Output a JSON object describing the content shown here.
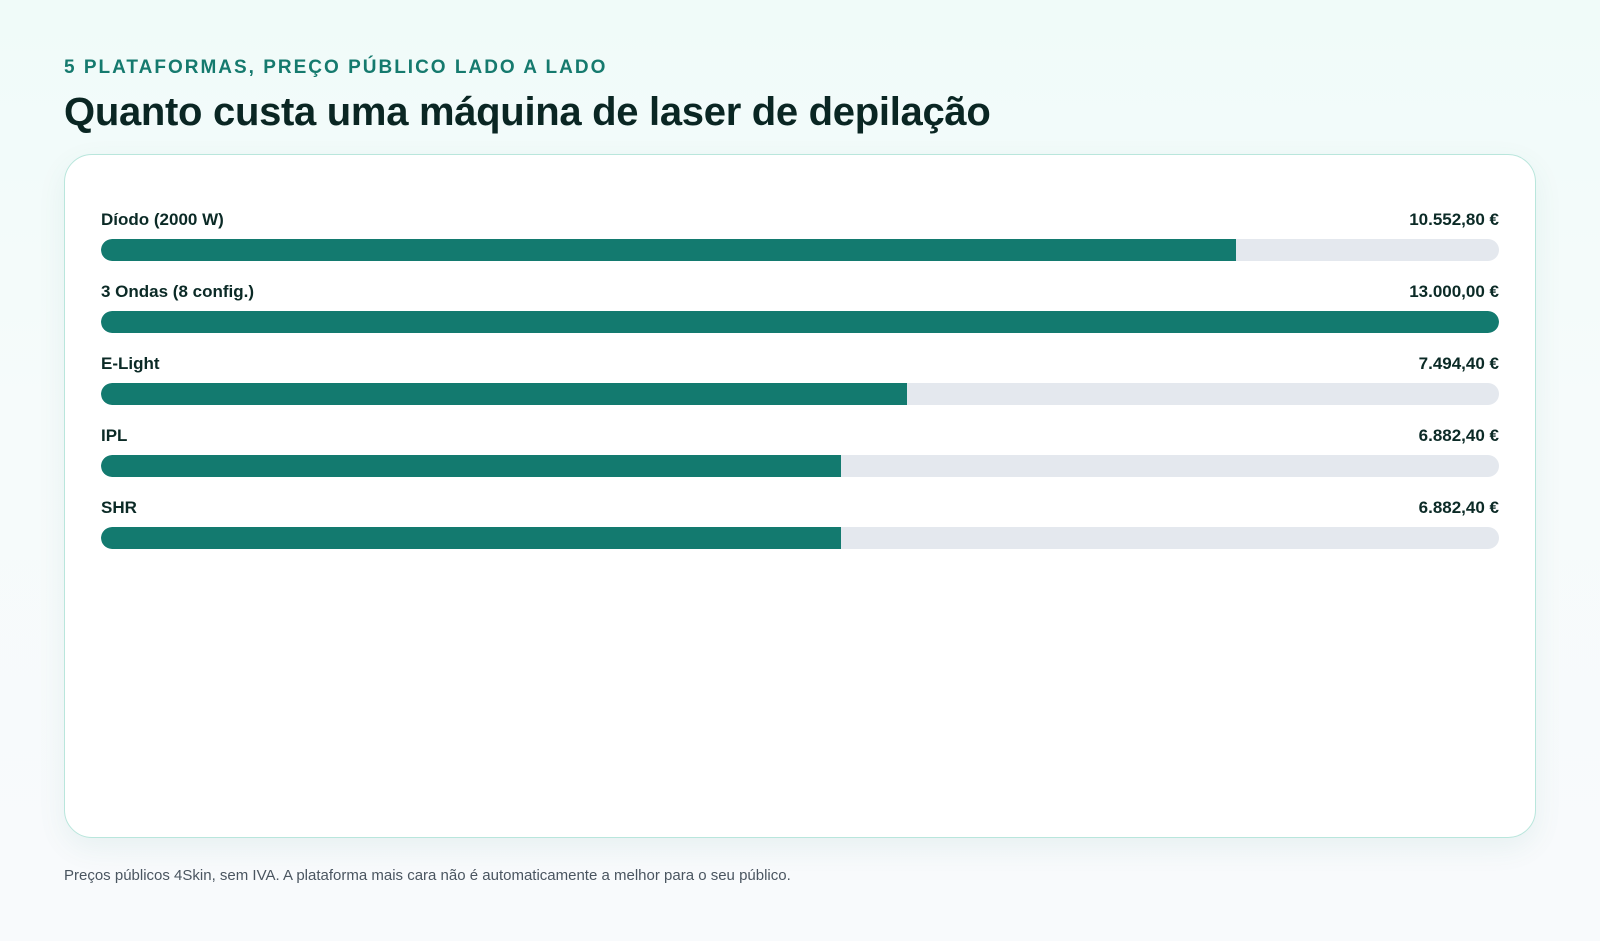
{
  "header": {
    "kicker": "5 PLATAFORMAS, PREÇO PÚBLICO LADO A LADO",
    "title": "Quanto custa uma máquina de laser de depilação"
  },
  "footer": {
    "note": "Preços públicos 4Skin, sem IVA. A plataforma mais cara não é automaticamente a melhor para o seu público."
  },
  "colors": {
    "bar_fill": "#137a6f",
    "bar_track": "#e4e8ee",
    "accent": "#157a6e"
  },
  "chart_data": {
    "type": "bar",
    "orientation": "horizontal",
    "title": "Quanto custa uma máquina de laser de depilação",
    "subtitle": "5 PLATAFORMAS, PREÇO PÚBLICO LADO A LADO",
    "xlabel": "",
    "ylabel": "",
    "xlim": [
      0,
      13000
    ],
    "grid": false,
    "categories": [
      "Díodo (2000 W)",
      "3 Ondas (8 config.)",
      "E-Light",
      "IPL",
      "SHR"
    ],
    "values": [
      10552.8,
      13000.0,
      7494.4,
      6882.4,
      6882.4
    ],
    "value_labels": [
      "10.552,80 €",
      "13.000,00 €",
      "7.494,40 €",
      "6.882,40 €",
      "6.882,40 €"
    ]
  }
}
